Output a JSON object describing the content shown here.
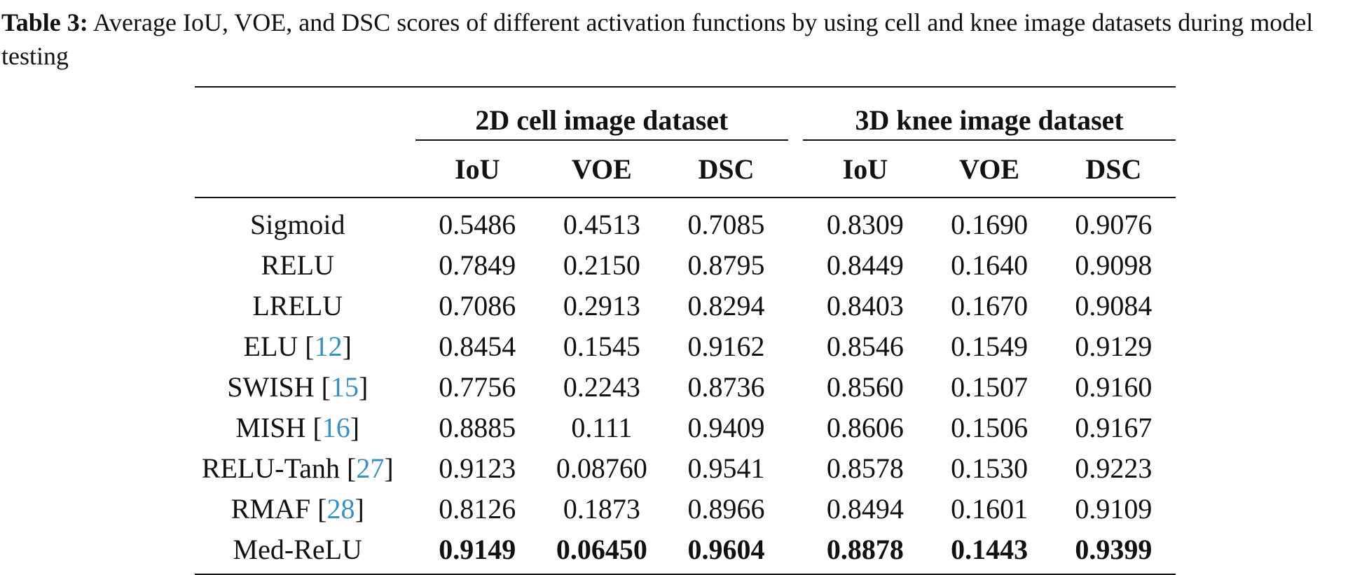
{
  "caption": {
    "label": "Table 3:",
    "text": "Average IoU, VOE, and DSC scores of different activation functions by using cell and knee image datasets during model testing"
  },
  "table": {
    "groups": [
      "2D cell image dataset",
      "3D knee image dataset"
    ],
    "columns": [
      "IoU",
      "VOE",
      "DSC",
      "IoU",
      "VOE",
      "DSC"
    ],
    "rows": [
      {
        "name": "Sigmoid",
        "ref": "",
        "values": [
          "0.5486",
          "0.4513",
          "0.7085",
          "0.8309",
          "0.1690",
          "0.9076"
        ]
      },
      {
        "name": "RELU",
        "ref": "",
        "values": [
          "0.7849",
          "0.2150",
          "0.8795",
          "0.8449",
          "0.1640",
          "0.9098"
        ]
      },
      {
        "name": "LRELU",
        "ref": "",
        "values": [
          "0.7086",
          "0.2913",
          "0.8294",
          "0.8403",
          "0.1670",
          "0.9084"
        ]
      },
      {
        "name": "ELU",
        "ref": "12",
        "values": [
          "0.8454",
          "0.1545",
          "0.9162",
          "0.8546",
          "0.1549",
          "0.9129"
        ]
      },
      {
        "name": "SWISH",
        "ref": "15",
        "values": [
          "0.7756",
          "0.2243",
          "0.8736",
          "0.8560",
          "0.1507",
          "0.9160"
        ]
      },
      {
        "name": "MISH",
        "ref": "16",
        "values": [
          "0.8885",
          "0.111",
          "0.9409",
          "0.8606",
          "0.1506",
          "0.9167"
        ]
      },
      {
        "name": "RELU-Tanh",
        "ref": "27",
        "values": [
          "0.9123",
          "0.08760",
          "0.9541",
          "0.8578",
          "0.1530",
          "0.9223"
        ]
      },
      {
        "name": "RMAF",
        "ref": "28",
        "values": [
          "0.8126",
          "0.1873",
          "0.8966",
          "0.8494",
          "0.1601",
          "0.9109"
        ]
      },
      {
        "name": "Med-ReLU",
        "ref": "",
        "values": [
          "0.9149",
          "0.06450",
          "0.9604",
          "0.8878",
          "0.1443",
          "0.9399"
        ],
        "bold": true
      }
    ]
  }
}
